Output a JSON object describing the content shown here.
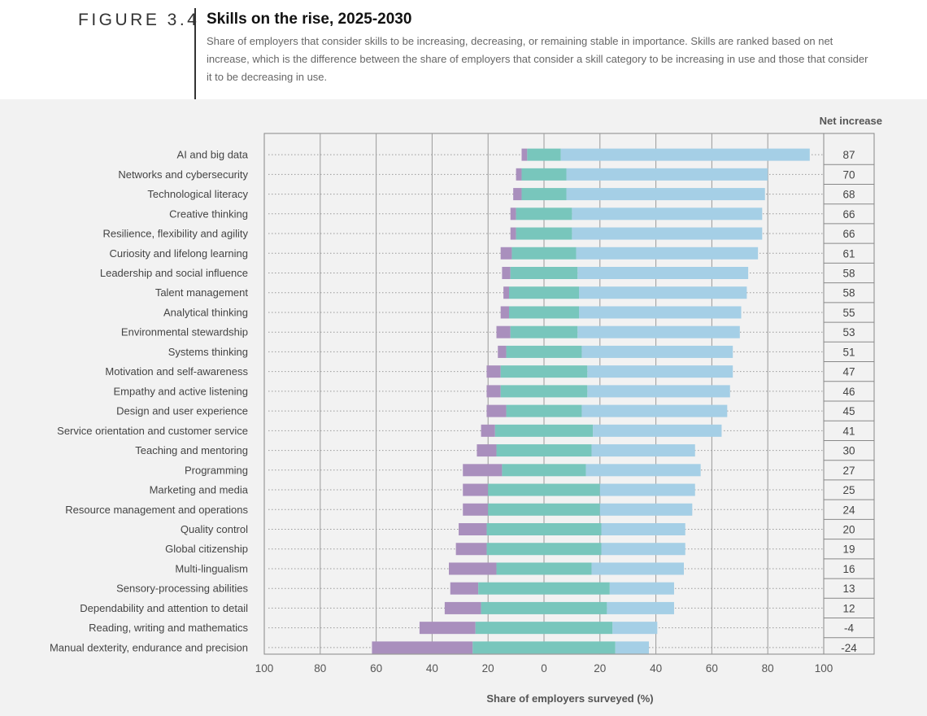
{
  "header": {
    "figure_label": "FIGURE 3.4",
    "title": "Skills on the rise, 2025-2030",
    "subtitle": "Share of employers that consider skills to be increasing, decreasing, or remaining stable in importance. Skills are ranked based on net increase, which is the difference between the share of employers that consider a skill category to be increasing in use and those that consider it to be decreasing in use."
  },
  "colors": {
    "decreasing": "#a98fbd",
    "stable": "#78c6bc",
    "increasing": "#a5cfe6",
    "background": "#f2f2f2"
  },
  "chart_data": {
    "type": "bar",
    "orientation": "horizontal-diverging",
    "xlabel": "Share of employers surveyed (%)",
    "net_header": "Net increase",
    "x_ticks": [
      "100",
      "80",
      "60",
      "40",
      "20",
      "0",
      "20",
      "40",
      "60",
      "80",
      "100"
    ],
    "xlim": [
      -100,
      100
    ],
    "grid": true,
    "categories": [
      "AI and big data",
      "Networks and cybersecurity",
      "Technological literacy",
      "Creative thinking",
      "Resilience, flexibility and agility",
      "Curiosity and lifelong learning",
      "Leadership and social influence",
      "Talent management",
      "Analytical thinking",
      "Environmental stewardship",
      "Systems thinking",
      "Motivation and self-awareness",
      "Empathy and active listening",
      "Design and user experience",
      "Service orientation and customer service",
      "Teaching and mentoring",
      "Programming",
      "Marketing and media",
      "Resource management and operations",
      "Quality control",
      "Global citizenship",
      "Multi-lingualism",
      "Sensory-processing abilities",
      "Dependability and attention to detail",
      "Reading, writing and mathematics",
      "Manual dexterity, endurance and precision"
    ],
    "series": [
      {
        "key": "decreasing",
        "values": [
          2,
          2,
          3,
          2,
          2,
          4,
          3,
          2,
          3,
          5,
          3,
          5,
          5,
          7,
          5,
          7,
          14,
          9,
          9,
          10,
          11,
          17,
          10,
          13,
          20,
          36
        ]
      },
      {
        "key": "stable",
        "values": [
          12,
          16,
          16,
          20,
          20,
          23,
          24,
          25,
          25,
          24,
          27,
          31,
          31,
          27,
          35,
          34,
          30,
          40,
          40,
          41,
          41,
          34,
          47,
          45,
          49,
          51
        ]
      },
      {
        "key": "increasing",
        "values": [
          89,
          72,
          71,
          68,
          68,
          65,
          61,
          60,
          58,
          58,
          54,
          52,
          51,
          52,
          46,
          37,
          41,
          34,
          33,
          30,
          30,
          33,
          23,
          24,
          16,
          12
        ]
      }
    ],
    "net_increase": [
      "87",
      "70",
      "68",
      "66",
      "66",
      "61",
      "58",
      "58",
      "55",
      "53",
      "51",
      "47",
      "46",
      "45",
      "41",
      "30",
      "27",
      "25",
      "24",
      "20",
      "19",
      "16",
      "13",
      "12",
      "-4",
      "-24"
    ]
  }
}
